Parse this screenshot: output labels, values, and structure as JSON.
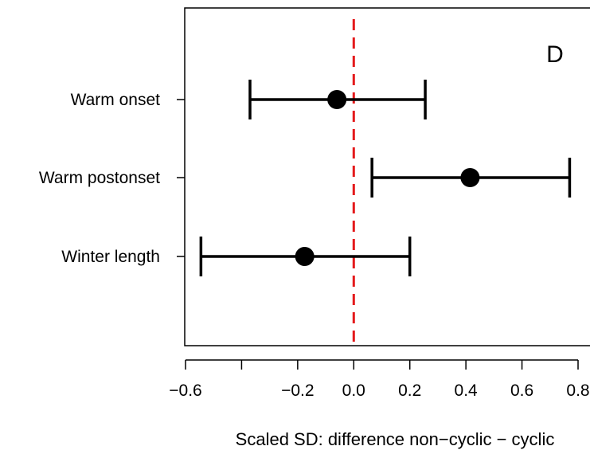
{
  "chart_data": {
    "type": "scatter",
    "subtype": "point-estimate-with-error-bars",
    "panel_label": "D",
    "xlabel": "Scaled SD: difference non−cyclic − cyclic",
    "ylabel": "",
    "xlim": [
      -0.6,
      0.8
    ],
    "x_ticks": [
      -0.6,
      -0.4,
      -0.2,
      0.0,
      0.2,
      0.4,
      0.6,
      0.8
    ],
    "x_tick_labels": [
      "−0.6",
      "",
      "−0.2",
      "0.0",
      "0.2",
      "0.4",
      "0.6",
      "0.8"
    ],
    "reference_line": {
      "x": 0.0,
      "color": "#e41a1c",
      "style": "dashed"
    },
    "grid": false,
    "point_color": "#000000",
    "rows": [
      {
        "label": "Warm onset",
        "estimate": -0.06,
        "lower": -0.37,
        "upper": 0.255
      },
      {
        "label": "Warm postonset",
        "estimate": 0.415,
        "lower": 0.065,
        "upper": 0.77
      },
      {
        "label": "Winter length",
        "estimate": -0.175,
        "lower": -0.545,
        "upper": 0.2
      }
    ]
  }
}
